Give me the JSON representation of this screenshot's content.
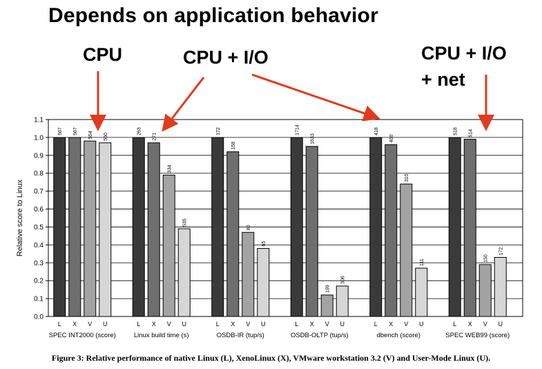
{
  "slide": {
    "title": "Depends on application behavior",
    "callout_cpu": "CPU",
    "callout_cpu_io": "CPU + I/O",
    "callout_net_line1": "CPU + I/O",
    "callout_net_line2": "+ net",
    "arrow_color": "#e23a1e"
  },
  "caption": "Figure 3: Relative performance of native Linux (L), XenoLinux (X), VMware workstation 3.2 (V) and User-Mode Linux (U).",
  "chart_data": {
    "type": "bar",
    "ylabel": "Relative score to Linux",
    "ylim": [
      0.0,
      1.1
    ],
    "yticks": [
      "0.0",
      "0.1",
      "0.2",
      "0.3",
      "0.4",
      "0.5",
      "0.6",
      "0.7",
      "0.8",
      "0.9",
      "1.0",
      "1.1"
    ],
    "bar_letters": [
      "L",
      "X",
      "V",
      "U"
    ],
    "bar_colors": [
      "#3a3a3a",
      "#6e6e6e",
      "#a3a3a3",
      "#d6d6d6"
    ],
    "grid": true,
    "groups": [
      {
        "name": "SPEC INT2000 (score)",
        "values": [
          1.0,
          1.0,
          0.98,
          0.97
        ],
        "labels": [
          "567",
          "567",
          "554",
          "550"
        ]
      },
      {
        "name": "Linux build time (s)",
        "values": [
          1.0,
          0.97,
          0.79,
          0.49
        ],
        "labels": [
          "263",
          "271",
          "334",
          "535"
        ]
      },
      {
        "name": "OSDB-IR (tup/s)",
        "values": [
          1.0,
          0.92,
          0.47,
          0.38
        ],
        "labels": [
          "172",
          "158",
          "80",
          "65"
        ]
      },
      {
        "name": "OSDB-OLTP (tup/s)",
        "values": [
          1.0,
          0.95,
          0.12,
          0.17
        ],
        "labels": [
          "1714",
          "1633",
          "199",
          "306"
        ]
      },
      {
        "name": "dbench (score)",
        "values": [
          1.0,
          0.96,
          0.74,
          0.27
        ],
        "labels": [
          "418",
          "400",
          "310",
          "111"
        ]
      },
      {
        "name": "SPEC WEB99 (score)",
        "values": [
          1.0,
          0.99,
          0.29,
          0.33
        ],
        "labels": [
          "518",
          "514",
          "150",
          "172"
        ]
      }
    ]
  }
}
